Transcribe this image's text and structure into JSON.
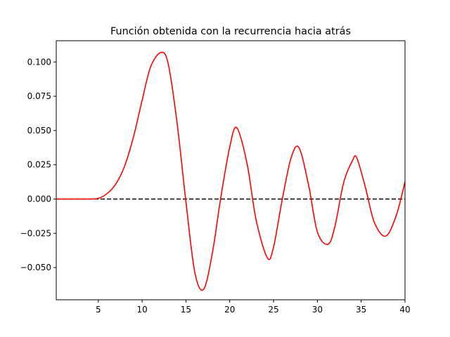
{
  "chart_data": {
    "type": "line",
    "title": "Función obtenida con la recurrencia hacia atrás",
    "xlabel": "",
    "ylabel": "",
    "xlim": [
      0.2,
      40
    ],
    "ylim": [
      -0.0735,
      0.1155
    ],
    "grid": false,
    "x_ticks": [
      {
        "value": 5,
        "label": "5"
      },
      {
        "value": 10,
        "label": "10"
      },
      {
        "value": 15,
        "label": "15"
      },
      {
        "value": 20,
        "label": "20"
      },
      {
        "value": 25,
        "label": "25"
      },
      {
        "value": 30,
        "label": "30"
      },
      {
        "value": 35,
        "label": "35"
      },
      {
        "value": 40,
        "label": "40"
      }
    ],
    "y_ticks": [
      {
        "value": -0.05,
        "label": "−0.050"
      },
      {
        "value": -0.025,
        "label": "−0.025"
      },
      {
        "value": 0.0,
        "label": "0.000"
      },
      {
        "value": 0.025,
        "label": "0.025"
      },
      {
        "value": 0.05,
        "label": "0.050"
      },
      {
        "value": 0.075,
        "label": "0.075"
      },
      {
        "value": 0.1,
        "label": "0.100"
      }
    ],
    "series": [
      {
        "color": "#ff0000",
        "style": "solid",
        "x": [
          0.2,
          4.0,
          5.0,
          6.0,
          7.0,
          8.0,
          9.0,
          10.0,
          11.0,
          12.2,
          13.0,
          14.0,
          15.0,
          16.0,
          17.0,
          18.0,
          19.0,
          20.0,
          20.8,
          22.0,
          23.0,
          24.3,
          25.0,
          26.0,
          27.0,
          27.9,
          29.0,
          30.0,
          31.2,
          32.0,
          33.0,
          34.0,
          34.5,
          35.5,
          36.5,
          37.8,
          39.0,
          40.0
        ],
        "y": [
          0.0,
          0.0,
          0.0005,
          0.004,
          0.011,
          0.024,
          0.045,
          0.072,
          0.097,
          0.107,
          0.098,
          0.055,
          -0.002,
          -0.053,
          -0.066,
          -0.04,
          0.002,
          0.038,
          0.052,
          0.025,
          -0.015,
          -0.043,
          -0.035,
          0.0,
          0.03,
          0.0375,
          0.01,
          -0.024,
          -0.033,
          -0.02,
          0.012,
          0.028,
          0.03,
          0.008,
          -0.017,
          -0.027,
          -0.012,
          0.0125
        ]
      },
      {
        "color": "#000000",
        "style": "dashed",
        "x": [
          0.2,
          40
        ],
        "y": [
          0,
          0
        ]
      }
    ]
  }
}
